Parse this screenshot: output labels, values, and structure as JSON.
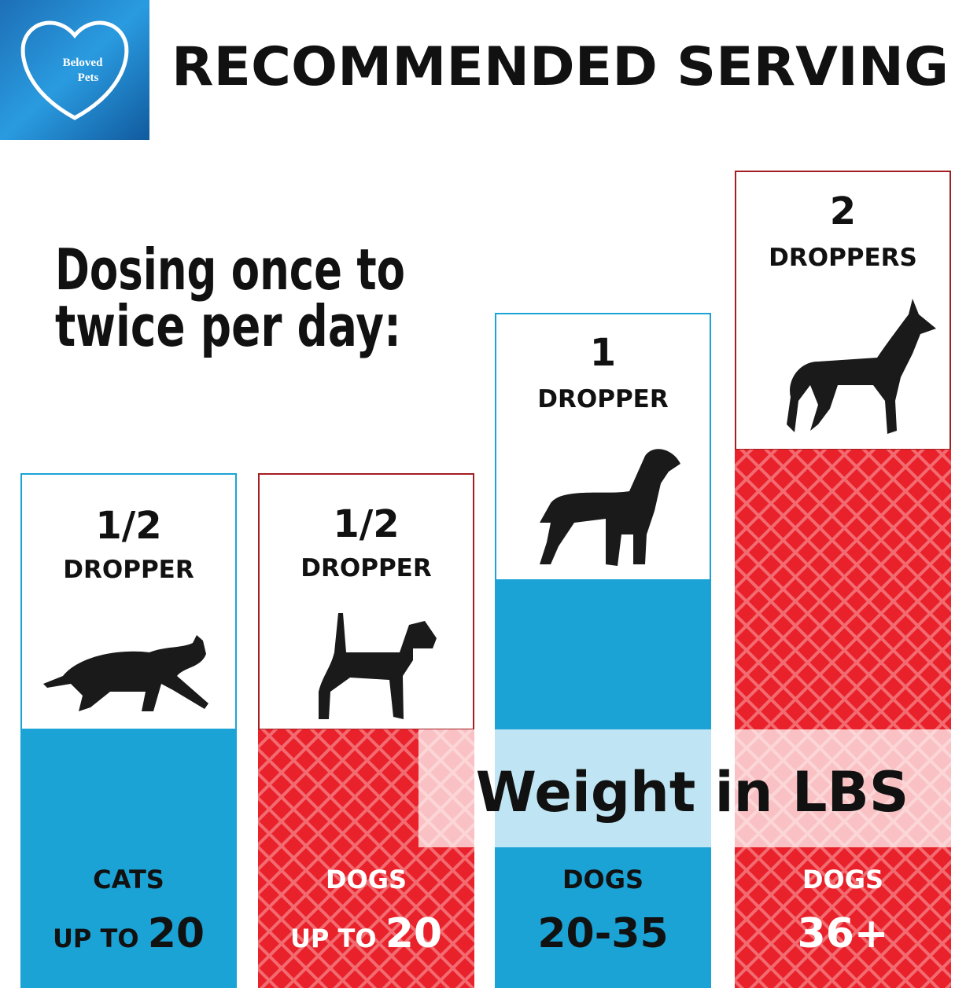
{
  "logo": {
    "lines": [
      "Beloved",
      "Pets"
    ]
  },
  "header": {
    "title": "RECOMMENDED SERVING"
  },
  "subtitle": {
    "lines": [
      "Dosing once to",
      "twice per day:"
    ]
  },
  "band_label": "Weight in LBS",
  "columns": [
    {
      "amount": "1/2",
      "unit": "DROPPER",
      "animal": "CATS",
      "weight_prefix": "UP TO",
      "weight": "20"
    },
    {
      "amount": "1/2",
      "unit": "DROPPER",
      "animal": "DOGS",
      "weight_prefix": "UP TO",
      "weight": "20"
    },
    {
      "amount": "1",
      "unit": "DROPPER",
      "animal": "DOGS",
      "weight": "20-35"
    },
    {
      "amount": "2",
      "unit": "DROPPERS",
      "animal": "DOGS",
      "weight": "36+"
    }
  ]
}
